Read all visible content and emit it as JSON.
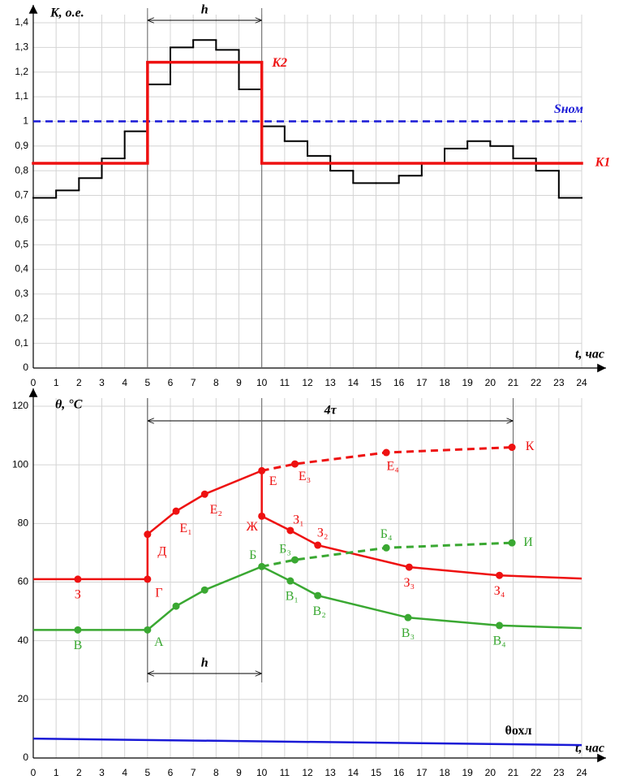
{
  "chart_data": [
    {
      "type": "step",
      "ylabel": "K, о.е.",
      "xlabel": "t, час",
      "xlim": [
        0,
        24
      ],
      "ylim": [
        0,
        1.4
      ],
      "xticks": [
        0,
        1,
        2,
        3,
        4,
        5,
        6,
        7,
        8,
        9,
        10,
        11,
        12,
        13,
        14,
        15,
        16,
        17,
        18,
        19,
        20,
        21,
        22,
        23,
        24
      ],
      "yticks": [
        0,
        {
          "value": 0.1,
          "label": "0,1"
        },
        {
          "value": 0.2,
          "label": "0,2"
        },
        {
          "value": 0.3,
          "label": "0,3"
        },
        {
          "value": 0.4,
          "label": "0,4"
        },
        {
          "value": 0.5,
          "label": "0,5"
        },
        {
          "value": 0.6,
          "label": "0,6"
        },
        {
          "value": 0.7,
          "label": "0,7"
        },
        {
          "value": 0.8,
          "label": "0,8"
        },
        {
          "value": 0.9,
          "label": "0,9"
        },
        1,
        {
          "value": 1.1,
          "label": "1,1"
        },
        {
          "value": 1.2,
          "label": "1,2"
        },
        {
          "value": 1.3,
          "label": "1,3"
        },
        {
          "value": 1.4,
          "label": "1,4"
        }
      ],
      "grid": true,
      "series": [
        {
          "color": "#000000",
          "width": 2,
          "x": [
            0,
            1,
            2,
            3,
            4,
            5,
            6,
            7,
            8,
            9,
            10,
            11,
            12,
            13,
            14,
            15,
            16,
            17,
            18,
            19,
            20,
            21,
            22,
            23
          ],
          "values": [
            0.69,
            0.72,
            0.77,
            0.85,
            0.96,
            1.15,
            1.3,
            1.33,
            1.29,
            1.13,
            0.98,
            0.92,
            0.86,
            0.8,
            0.75,
            0.75,
            0.78,
            0.83,
            0.89,
            0.92,
            0.9,
            0.85,
            0.8,
            0.69
          ]
        },
        {
          "color": "#ee1111",
          "width": 3.5,
          "x": [
            0,
            5,
            10
          ],
          "values": [
            0.83,
            1.24,
            0.83
          ],
          "point_labels": [
            null,
            "K2",
            "K1"
          ]
        }
      ],
      "hlines": [
        {
          "value": 1,
          "label": "Sном",
          "color": "#1a1ad6",
          "dashed": true
        }
      ],
      "spans": [
        {
          "from": 5,
          "to": 10,
          "label": "h"
        }
      ]
    },
    {
      "type": "line",
      "ylabel": "θ, °C",
      "xlabel": "t, час",
      "xlim": [
        0,
        24
      ],
      "ylim": [
        0,
        120
      ],
      "xticks": [
        0,
        1,
        2,
        3,
        4,
        5,
        6,
        7,
        8,
        9,
        10,
        11,
        12,
        13,
        14,
        15,
        16,
        17,
        18,
        19,
        20,
        21,
        22,
        23,
        24
      ],
      "yticks": [
        0,
        20,
        40,
        60,
        80,
        100,
        120
      ],
      "grid": true,
      "series": [
        {
          "color": "#ee1111",
          "x": [
            0,
            1.95,
            5,
            5,
            6.25,
            7.5,
            10,
            10,
            11.25,
            12.45,
            16.45,
            20.4,
            24
          ],
          "values": [
            61,
            61,
            61,
            76.3,
            84.2,
            90,
            98,
            82.5,
            77.6,
            72.6,
            65.1,
            62.3,
            61.2
          ],
          "point_labels": [
            null,
            "З",
            "Г",
            "Д",
            "Е₁",
            "Е₂",
            "Е",
            "Ж",
            "З₁",
            "З₂",
            "З₃",
            "З₄",
            null
          ]
        },
        {
          "color": "#ee1111",
          "dashed": true,
          "x": [
            10,
            11.45,
            15.45,
            20.95
          ],
          "values": [
            98,
            100.3,
            104.2,
            106
          ],
          "point_labels": [
            null,
            "Е₃",
            "Е₄",
            "К"
          ]
        },
        {
          "color": "#3aa832",
          "x": [
            0,
            1.95,
            5,
            6.25,
            7.5,
            10,
            11.25,
            12.45,
            16.4,
            20.4,
            24
          ],
          "values": [
            43.7,
            43.7,
            43.7,
            51.8,
            57.3,
            65.3,
            60.4,
            55.4,
            47.9,
            45.2,
            44.3
          ],
          "point_labels": [
            null,
            "В",
            "А",
            null,
            null,
            "Б",
            "В₁",
            "В₂",
            "В₃",
            "В₄",
            null
          ]
        },
        {
          "color": "#3aa832",
          "dashed": true,
          "x": [
            10,
            11.45,
            15.45,
            20.95
          ],
          "values": [
            65.3,
            67.6,
            71.7,
            73.4
          ],
          "point_labels": [
            null,
            "Б₃",
            "Б₄",
            "И"
          ]
        },
        {
          "color": "#1a1ad6",
          "x": [
            0,
            24
          ],
          "values": [
            6.6,
            4.4
          ],
          "point_labels": [
            null,
            "θохл"
          ]
        }
      ],
      "spans": [
        {
          "from": 5,
          "to": 21,
          "label": "4τ"
        },
        {
          "from": 5,
          "to": 10,
          "label": "h"
        }
      ]
    }
  ]
}
